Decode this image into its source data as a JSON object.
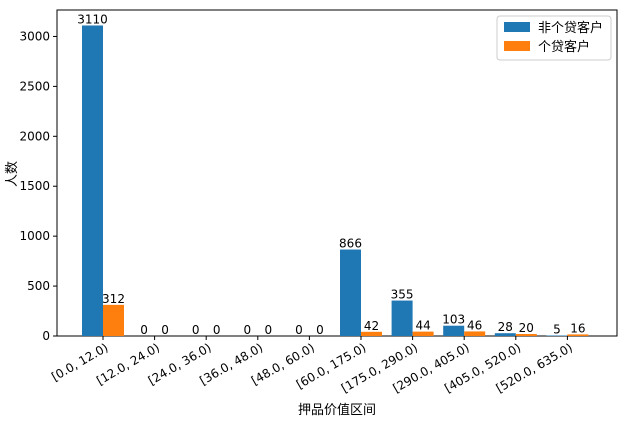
{
  "chart_data": {
    "type": "bar",
    "categories": [
      "[0.0, 12.0)",
      "[12.0, 24.0)",
      "[24.0, 36.0)",
      "[36.0, 48.0)",
      "[48.0, 60.0)",
      "[60.0, 175.0)",
      "[175.0, 290.0)",
      "[290.0, 405.0)",
      "[405.0, 520.0)",
      "[520.0, 635.0)"
    ],
    "series": [
      {
        "name": "非个贷客户",
        "color": "#1f77b4",
        "values": [
          3110,
          0,
          0,
          0,
          0,
          866,
          355,
          103,
          28,
          5
        ]
      },
      {
        "name": "个贷客户",
        "color": "#ff7f0e",
        "values": [
          312,
          0,
          0,
          0,
          0,
          42,
          44,
          46,
          20,
          16
        ]
      }
    ],
    "xlabel": "押品价值区间",
    "ylabel": "人数",
    "ylim": [
      0,
      3265
    ],
    "yticks": [
      0,
      500,
      1000,
      1500,
      2000,
      2500,
      3000
    ],
    "legend": "upper-right",
    "grid": false
  }
}
